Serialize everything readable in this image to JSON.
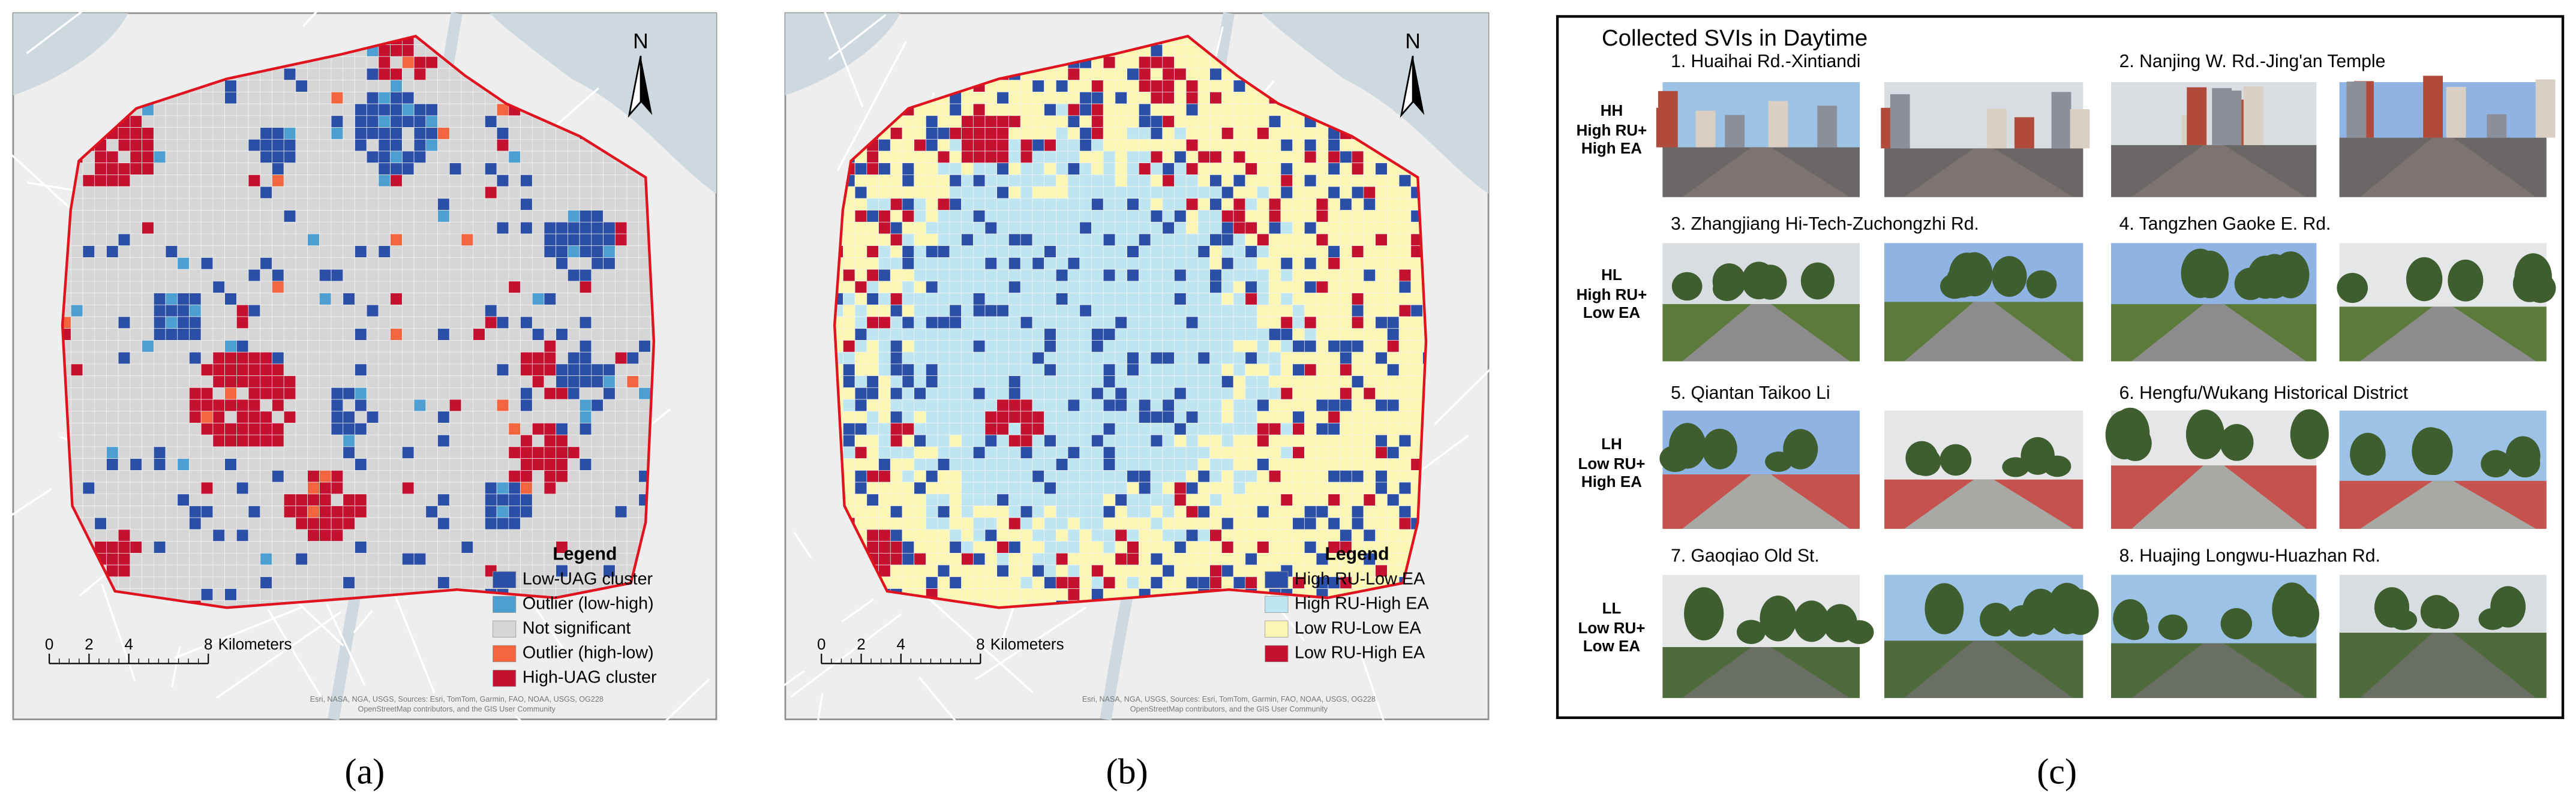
{
  "panels": [
    {
      "label": "(a)",
      "north": "N",
      "legend": {
        "title": "Legend",
        "items": [
          {
            "name": "Low-UAG cluster",
            "color": "#2b4ea6"
          },
          {
            "name": "Outlier (low-high)",
            "color": "#4d9fd1"
          },
          {
            "name": "Not significant",
            "color": "#d6d6d6"
          },
          {
            "name": "Outlier (high-low)",
            "color": "#f2653f"
          },
          {
            "name": "High-UAG cluster",
            "color": "#c4112f"
          }
        ]
      },
      "scale": {
        "ticks": [
          0,
          2,
          4,
          8
        ],
        "unit": "Kilometers"
      },
      "attribution": [
        "Esri, NASA, NGA, USGS, Sources: Esri, TomTom, Garmin, FAO, NOAA, USGS, OG228",
        "OpenStreetMap contributors, and the GIS User Community"
      ]
    },
    {
      "label": "(b)",
      "north": "N",
      "legend": {
        "title": "Legend",
        "items": [
          {
            "name": "High RU-Low EA",
            "color": "#2b4ea6"
          },
          {
            "name": "High RU-High EA",
            "color": "#bfe6f0"
          },
          {
            "name": "Low RU-Low EA",
            "color": "#fbf6b3"
          },
          {
            "name": "Low RU-High EA",
            "color": "#c4112f"
          }
        ]
      },
      "scale": {
        "ticks": [
          0,
          2,
          4,
          8
        ],
        "unit": "Kilometers"
      },
      "attribution": [
        "Esri, NASA, NGA, USGS, Sources: Esri, TomTom, Garmin, FAO, NOAA, USGS, OG228",
        "OpenStreetMap contributors, and the GIS User Community"
      ]
    }
  ],
  "svi": {
    "title": "Collected SVIs in Daytime",
    "label": "(c)",
    "rows": [
      {
        "code": "HH",
        "desc": [
          "High RU+",
          "High EA"
        ],
        "sites": [
          "1. Huaihai Rd.-Xintiandi",
          "2. Nanjing W. Rd.-Jing'an Temple"
        ]
      },
      {
        "code": "HL",
        "desc": [
          "High RU+",
          "Low EA"
        ],
        "sites": [
          "3. Zhangjiang Hi-Tech-Zuchongzhi Rd.",
          "4. Tangzhen Gaoke E. Rd."
        ]
      },
      {
        "code": "LH",
        "desc": [
          "Low RU+",
          "High EA"
        ],
        "sites": [
          "5. Qiantan Taikoo Li",
          "6. Hengfu/Wukang Historical District"
        ]
      },
      {
        "code": "LL",
        "desc": [
          "Low RU+",
          "Low EA"
        ],
        "sites": [
          "7. Gaoqiao Old St.",
          "8. Huajing Longwu-Huazhan Rd."
        ]
      }
    ]
  }
}
